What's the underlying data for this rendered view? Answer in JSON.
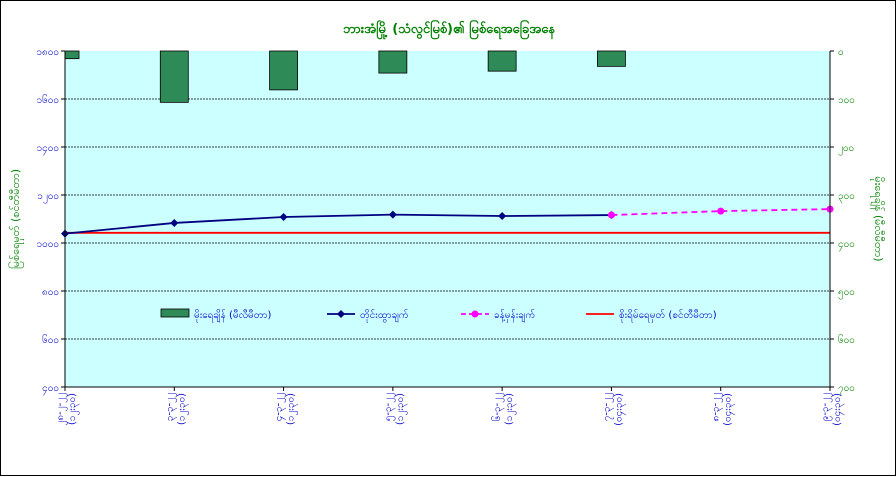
{
  "chart_data": {
    "type": "bar+line",
    "title": "ဘားအံမြို့ (သံလွင်မြစ်)၏ မြစ်ရေအခြေအနေ",
    "ylabel_left": "မြစ်ရေမှတ် (စင်တီမီတာ)",
    "ylabel_right": "မိုးရေချိန် (မီလီမီတာ)",
    "categories": [
      "၂၈-၂-၂၂\n(၁၂း၃၀)",
      "၃-၃-၂၂\n(၁၂း၃၀)",
      "၄-၃-၂၂\n(၁၂း၃၀)",
      "၅-၃-၂၂\n(၁၂း၃၀)",
      "၆-၃-၂၂\n(၁၂း၃၀)",
      "၇-၃-၂၂\n(၀၄း၃၀)",
      "၈-၃-၂၂\n(၀၄း၃၀)",
      "၉-၃-၂၂\n(၀၄း၃၀)"
    ],
    "y_left": {
      "min": 100,
      "max": 1800,
      "ticks": [
        "၁၀၀",
        "၄၀၀",
        "၈၀၀",
        "၈၀၀",
        "၁၀၀၀",
        "၁၂၀၀",
        "၁၄၀၀",
        "၁၆၀၀",
        "၁၈၀၀"
      ]
    },
    "y_right": {
      "min": 0,
      "max": 700,
      "ticks": [
        "၀",
        "၁၀၀",
        "၂၀၀",
        "၃၀၀",
        "၄၀၀",
        "၅၀၀",
        "၆၀၀",
        "၇၀၀"
      ]
    },
    "series": [
      {
        "name": "မိုးရေချိန် (မီလီမီတာ)",
        "kind": "bar",
        "axis": "right",
        "color": "#2e8b57",
        "values": [
          16,
          107,
          81,
          46,
          42,
          32,
          null,
          null
        ]
      },
      {
        "name": "တိုင်းထွာချက်",
        "kind": "line",
        "axis": "left",
        "color": "#000080",
        "values": [
          876,
          930,
          960,
          972,
          965,
          970,
          null,
          null
        ]
      },
      {
        "name": "ခန့်မှန်းချက်",
        "kind": "dashed-line",
        "axis": "left",
        "color": "#ff00ff",
        "values": [
          null,
          null,
          null,
          null,
          null,
          970,
          990,
          1000
        ]
      },
      {
        "name": "စိုးရိမ်ရေမှတ် (စင်တီမီတာ)",
        "kind": "hline",
        "axis": "left",
        "color": "#ff0000",
        "value": 880
      }
    ],
    "grid": true,
    "legend_position": "inside-lower"
  },
  "colors": {
    "plot_bg": "#ccffff",
    "grid": "#000000"
  }
}
